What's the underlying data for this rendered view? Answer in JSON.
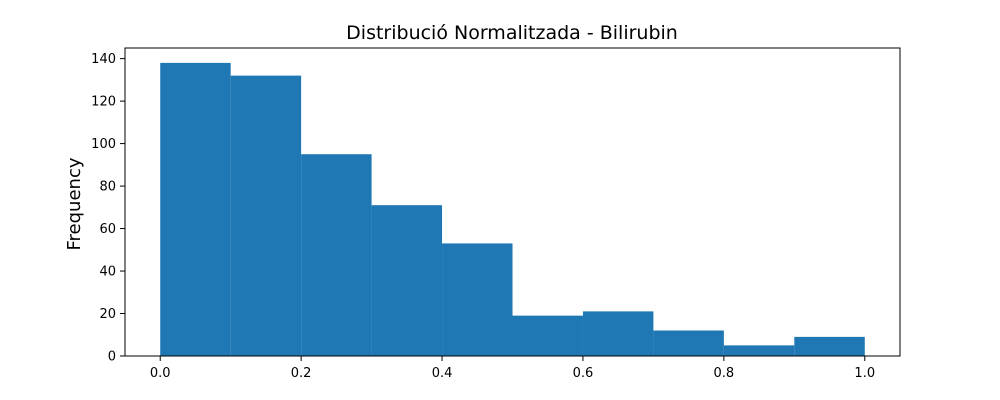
{
  "chart_data": {
    "type": "bar",
    "subtype": "histogram",
    "title": "Distribució Normalitzada - Bilirubin",
    "xlabel": "",
    "ylabel": "Frequency",
    "bins": [
      {
        "x0": 0.0,
        "x1": 0.1,
        "value": 138
      },
      {
        "x0": 0.1,
        "x1": 0.2,
        "value": 132
      },
      {
        "x0": 0.2,
        "x1": 0.3,
        "value": 95
      },
      {
        "x0": 0.3,
        "x1": 0.4,
        "value": 71
      },
      {
        "x0": 0.4,
        "x1": 0.5,
        "value": 53
      },
      {
        "x0": 0.5,
        "x1": 0.6,
        "value": 19
      },
      {
        "x0": 0.6,
        "x1": 0.7,
        "value": 21
      },
      {
        "x0": 0.7,
        "x1": 0.8,
        "value": 12
      },
      {
        "x0": 0.8,
        "x1": 0.9,
        "value": 5
      },
      {
        "x0": 0.9,
        "x1": 1.0,
        "value": 9
      }
    ],
    "xlim": [
      -0.05,
      1.05
    ],
    "ylim": [
      0,
      145
    ],
    "xticks": [
      0.0,
      0.2,
      0.4,
      0.6,
      0.8,
      1.0
    ],
    "xtick_labels": [
      "0.0",
      "0.2",
      "0.4",
      "0.6",
      "0.8",
      "1.0"
    ],
    "yticks": [
      0,
      20,
      40,
      60,
      80,
      100,
      120,
      140
    ],
    "ytick_labels": [
      "0",
      "20",
      "40",
      "60",
      "80",
      "100",
      "120",
      "140"
    ],
    "bar_color": "#1f77b4",
    "grid": false,
    "legend": "none"
  }
}
